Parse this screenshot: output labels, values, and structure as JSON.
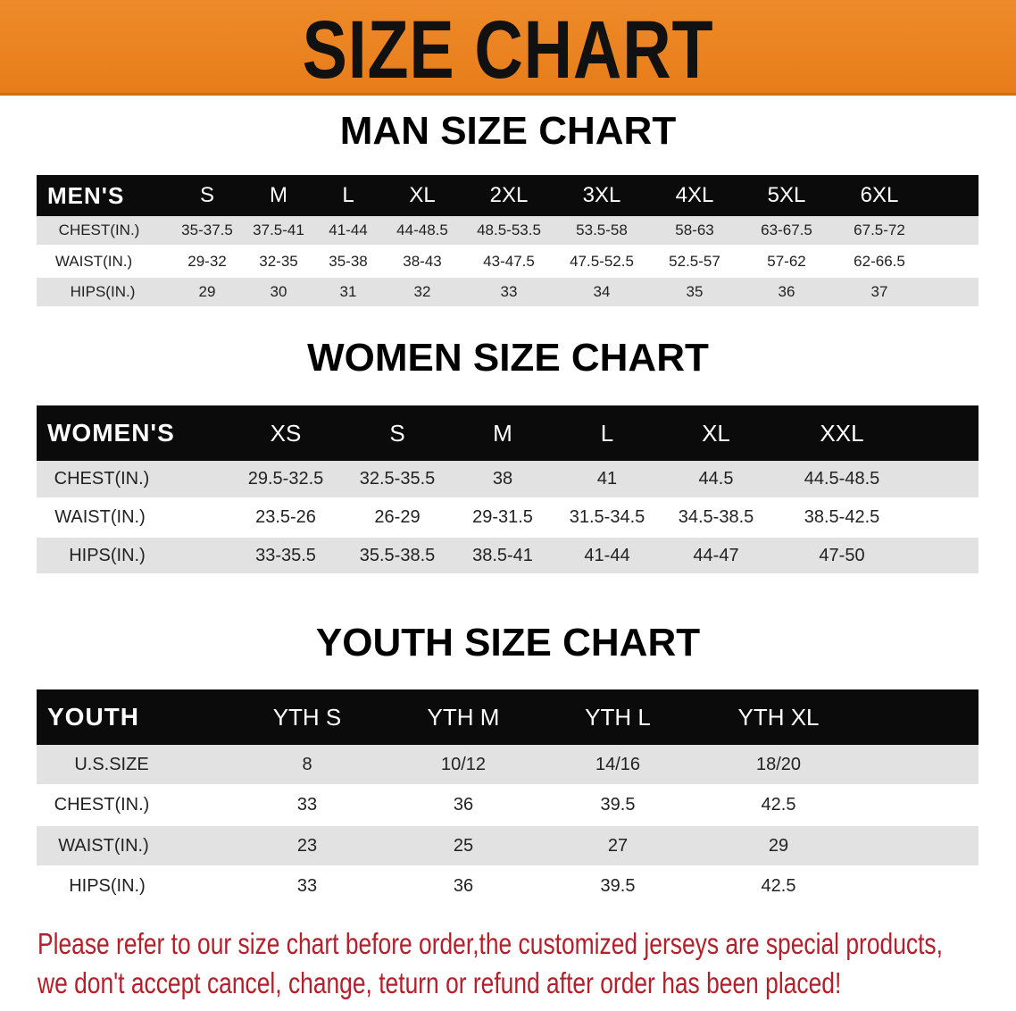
{
  "banner_title": "SIZE CHART",
  "colors": {
    "banner": "#e77d1a",
    "header_row": "#0b0b0b",
    "stripe": "#e2e2e2",
    "notice": "#b3202a"
  },
  "men": {
    "title": "MAN SIZE CHART",
    "header": [
      "MEN'S",
      "S",
      "M",
      "L",
      "XL",
      "2XL",
      "3XL",
      "4XL",
      "5XL",
      "6XL"
    ],
    "rows": [
      [
        "CHEST(IN.)",
        "35-37.5",
        "37.5-41",
        "41-44",
        "44-48.5",
        "48.5-53.5",
        "53.5-58",
        "58-63",
        "63-67.5",
        "67.5-72"
      ],
      [
        "WAIST(IN.)",
        "29-32",
        "32-35",
        "35-38",
        "38-43",
        "43-47.5",
        "47.5-52.5",
        "52.5-57",
        "57-62",
        "62-66.5"
      ],
      [
        "HIPS(IN.)",
        "29",
        "30",
        "31",
        "32",
        "33",
        "34",
        "35",
        "36",
        "37"
      ]
    ]
  },
  "women": {
    "title": "WOMEN SIZE CHART",
    "header": [
      "WOMEN'S",
      "XS",
      "S",
      "M",
      "L",
      "XL",
      "XXL"
    ],
    "rows": [
      [
        "CHEST(IN.)",
        "29.5-32.5",
        "32.5-35.5",
        "38",
        "41",
        "44.5",
        "44.5-48.5"
      ],
      [
        "WAIST(IN.)",
        "23.5-26",
        "26-29",
        "29-31.5",
        "31.5-34.5",
        "34.5-38.5",
        "38.5-42.5"
      ],
      [
        "HIPS(IN.)",
        "33-35.5",
        "35.5-38.5",
        "38.5-41",
        "41-44",
        "44-47",
        "47-50"
      ]
    ]
  },
  "youth": {
    "title": "YOUTH SIZE CHART",
    "header": [
      "YOUTH",
      "YTH S",
      "YTH M",
      "YTH L",
      "YTH XL"
    ],
    "rows": [
      [
        "U.S.SIZE",
        "8",
        "10/12",
        "14/16",
        "18/20"
      ],
      [
        "CHEST(IN.)",
        "33",
        "36",
        "39.5",
        "42.5"
      ],
      [
        "WAIST(IN.)",
        "23",
        "25",
        "27",
        "29"
      ],
      [
        "HIPS(IN.)",
        "33",
        "36",
        "39.5",
        "42.5"
      ]
    ]
  },
  "notice": {
    "line1": "Please refer to our size chart before order,the customized jerseys are special products,",
    "line2": "we don't accept cancel, change, teturn or refund after order has been placed!"
  }
}
